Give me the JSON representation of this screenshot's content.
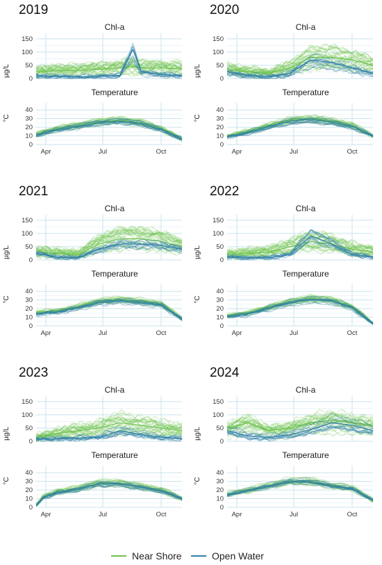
{
  "legend": {
    "items": [
      {
        "label": "Near Shore",
        "color": "#6cc24a"
      },
      {
        "label": "Open Water",
        "color": "#2f7ea8"
      }
    ]
  },
  "colors": {
    "near_shore": "#6cc24a",
    "open_water": "#2f7ea8",
    "grid": "#c8e3ec"
  },
  "chart_data": [
    {
      "year": "2019",
      "panels": [
        {
          "type": "line",
          "title": "Chl-a",
          "ylabel": "µg/L",
          "ylim": [
            0,
            160
          ],
          "yticks": [
            0,
            50,
            100,
            150
          ],
          "xticks": [
            "Apr",
            "Jul",
            "Oct"
          ],
          "xlim": [
            "Mar 31",
            "Oct 31"
          ],
          "series": [
            {
              "name": "Near Shore",
              "x": [
                "Apr 01",
                "May 01",
                "Jun 01",
                "Jul 01",
                "Aug 01",
                "Aug 20",
                "Sep 01",
                "Oct 01",
                "Oct 31"
              ],
              "values": [
                25,
                30,
                30,
                35,
                40,
                45,
                40,
                40,
                35
              ]
            },
            {
              "name": "Open Water",
              "x": [
                "Apr 01",
                "May 01",
                "Jun 01",
                "Jul 01",
                "Aug 01",
                "Aug 20",
                "Sep 01",
                "Oct 01",
                "Oct 31"
              ],
              "values": [
                10,
                8,
                6,
                8,
                12,
                110,
                25,
                15,
                10
              ]
            }
          ]
        },
        {
          "type": "line",
          "title": "Temperature",
          "ylabel": "°C",
          "ylim": [
            0,
            45
          ],
          "yticks": [
            0,
            10,
            20,
            30,
            40
          ],
          "xticks": [
            "Apr",
            "Jul",
            "Oct"
          ],
          "xlim": [
            "Mar 31",
            "Oct 31"
          ],
          "series": [
            {
              "name": "Near Shore",
              "x": [
                "Apr 01",
                "May 01",
                "Jun 01",
                "Jul 01",
                "Aug 01",
                "Sep 01",
                "Oct 01",
                "Oct 31"
              ],
              "values": [
                12,
                18,
                22,
                26,
                28,
                25,
                18,
                6
              ]
            },
            {
              "name": "Open Water",
              "x": [
                "Apr 01",
                "May 01",
                "Jun 01",
                "Jul 01",
                "Aug 01",
                "Sep 01",
                "Oct 01",
                "Oct 31"
              ],
              "values": [
                11,
                17,
                21,
                25,
                27,
                24,
                17,
                6
              ]
            }
          ]
        }
      ]
    },
    {
      "year": "2020",
      "panels": [
        {
          "type": "line",
          "title": "Chl-a",
          "ylabel": "µg/L",
          "ylim": [
            0,
            160
          ],
          "yticks": [
            0,
            50,
            100,
            150
          ],
          "xticks": [
            "Apr",
            "Jul",
            "Oct"
          ],
          "xlim": [
            "Mar 31",
            "Oct 31"
          ],
          "series": [
            {
              "name": "Near Shore",
              "x": [
                "Apr 01",
                "May 01",
                "Jun 01",
                "Jul 01",
                "Aug 01",
                "Sep 01",
                "Oct 01",
                "Oct 31"
              ],
              "values": [
                35,
                25,
                20,
                40,
                80,
                80,
                70,
                50
              ]
            },
            {
              "name": "Open Water",
              "x": [
                "Apr 01",
                "May 01",
                "Jun 01",
                "Jul 01",
                "Aug 01",
                "Sep 01",
                "Oct 01",
                "Oct 31"
              ],
              "values": [
                25,
                12,
                8,
                20,
                70,
                60,
                40,
                20
              ]
            }
          ]
        },
        {
          "type": "line",
          "title": "Temperature",
          "ylabel": "°C",
          "ylim": [
            0,
            45
          ],
          "yticks": [
            0,
            10,
            20,
            30,
            40
          ],
          "xticks": [
            "Apr",
            "Jul",
            "Oct"
          ],
          "xlim": [
            "Mar 31",
            "Oct 31"
          ],
          "series": [
            {
              "name": "Near Shore",
              "x": [
                "Apr 01",
                "May 01",
                "Jun 01",
                "Jul 01",
                "Aug 01",
                "Sep 01",
                "Oct 01",
                "Oct 31"
              ],
              "values": [
                10,
                15,
                22,
                28,
                30,
                27,
                22,
                10
              ]
            },
            {
              "name": "Open Water",
              "x": [
                "Apr 01",
                "May 01",
                "Jun 01",
                "Jul 01",
                "Aug 01",
                "Sep 01",
                "Oct 01",
                "Oct 31"
              ],
              "values": [
                9,
                14,
                21,
                27,
                29,
                26,
                21,
                10
              ]
            }
          ]
        }
      ]
    },
    {
      "year": "2021",
      "panels": [
        {
          "type": "line",
          "title": "Chl-a",
          "ylabel": "µg/L",
          "ylim": [
            0,
            160
          ],
          "yticks": [
            0,
            50,
            100,
            150
          ],
          "xticks": [
            "Apr",
            "Jul",
            "Oct"
          ],
          "xlim": [
            "Mar 31",
            "Oct 31"
          ],
          "series": [
            {
              "name": "Near Shore",
              "x": [
                "Apr 01",
                "May 01",
                "Jun 01",
                "Jul 01",
                "Aug 01",
                "Sep 01",
                "Oct 01",
                "Oct 31"
              ],
              "values": [
                30,
                25,
                20,
                60,
                80,
                80,
                70,
                50
              ]
            },
            {
              "name": "Open Water",
              "x": [
                "Apr 01",
                "May 01",
                "Jun 01",
                "Jul 01",
                "Aug 01",
                "Sep 01",
                "Oct 01",
                "Oct 31"
              ],
              "values": [
                25,
                10,
                8,
                40,
                60,
                60,
                55,
                40
              ]
            }
          ]
        },
        {
          "type": "line",
          "title": "Temperature",
          "ylabel": "°C",
          "ylim": [
            0,
            45
          ],
          "yticks": [
            0,
            10,
            20,
            30,
            40
          ],
          "xticks": [
            "Apr",
            "Jul",
            "Oct"
          ],
          "xlim": [
            "Mar 31",
            "Oct 31"
          ],
          "series": [
            {
              "name": "Near Shore",
              "x": [
                "Apr 01",
                "May 01",
                "Jun 01",
                "Jul 01",
                "Aug 01",
                "Sep 01",
                "Oct 01",
                "Oct 31"
              ],
              "values": [
                15,
                17,
                22,
                28,
                30,
                28,
                25,
                8
              ]
            },
            {
              "name": "Open Water",
              "x": [
                "Apr 01",
                "May 01",
                "Jun 01",
                "Jul 01",
                "Aug 01",
                "Sep 01",
                "Oct 01",
                "Oct 31"
              ],
              "values": [
                14,
                16,
                21,
                27,
                29,
                27,
                24,
                8
              ]
            }
          ]
        }
      ]
    },
    {
      "year": "2022",
      "panels": [
        {
          "type": "line",
          "title": "Chl-a",
          "ylabel": "µg/L",
          "ylim": [
            0,
            160
          ],
          "yticks": [
            0,
            50,
            100,
            150
          ],
          "xticks": [
            "Apr",
            "Jul",
            "Oct"
          ],
          "xlim": [
            "Mar 31",
            "Oct 31"
          ],
          "series": [
            {
              "name": "Near Shore",
              "x": [
                "Apr 01",
                "May 01",
                "Jun 01",
                "Jul 01",
                "Aug 01",
                "Sep 01",
                "Oct 01",
                "Oct 31"
              ],
              "values": [
                20,
                25,
                30,
                50,
                70,
                60,
                40,
                30
              ]
            },
            {
              "name": "Open Water",
              "x": [
                "Apr 01",
                "May 01",
                "Jun 01",
                "Jul 01",
                "Aug 01",
                "Sep 01",
                "Oct 01",
                "Oct 31"
              ],
              "values": [
                10,
                8,
                8,
                20,
                90,
                60,
                20,
                10
              ]
            }
          ]
        },
        {
          "type": "line",
          "title": "Temperature",
          "ylabel": "°C",
          "ylim": [
            0,
            45
          ],
          "yticks": [
            0,
            10,
            20,
            30,
            40
          ],
          "xticks": [
            "Apr",
            "Jul",
            "Oct"
          ],
          "xlim": [
            "Mar 31",
            "Oct 31"
          ],
          "series": [
            {
              "name": "Near Shore",
              "x": [
                "Apr 01",
                "May 01",
                "Jun 01",
                "Jul 01",
                "Aug 01",
                "Sep 01",
                "Oct 01",
                "Oct 31"
              ],
              "values": [
                12,
                15,
                22,
                28,
                32,
                30,
                22,
                3
              ]
            },
            {
              "name": "Open Water",
              "x": [
                "Apr 01",
                "May 01",
                "Jun 01",
                "Jul 01",
                "Aug 01",
                "Sep 01",
                "Oct 01",
                "Oct 31"
              ],
              "values": [
                11,
                14,
                21,
                27,
                31,
                29,
                21,
                3
              ]
            }
          ]
        }
      ]
    },
    {
      "year": "2023",
      "panels": [
        {
          "type": "line",
          "title": "Chl-a",
          "ylabel": "µg/L",
          "ylim": [
            0,
            160
          ],
          "yticks": [
            0,
            50,
            100,
            150
          ],
          "xticks": [
            "Apr",
            "Jul",
            "Oct"
          ],
          "xlim": [
            "Mar 31",
            "Oct 31"
          ],
          "series": [
            {
              "name": "Near Shore",
              "x": [
                "Apr 01",
                "May 01",
                "Jun 01",
                "Jul 01",
                "Aug 01",
                "Sep 01",
                "Oct 01",
                "Oct 31"
              ],
              "values": [
                15,
                30,
                40,
                50,
                70,
                60,
                50,
                40
              ]
            },
            {
              "name": "Open Water",
              "x": [
                "Apr 01",
                "May 01",
                "Jun 01",
                "Jul 01",
                "Aug 01",
                "Sep 01",
                "Oct 01",
                "Oct 31"
              ],
              "values": [
                8,
                10,
                12,
                15,
                40,
                25,
                15,
                10
              ]
            }
          ]
        },
        {
          "type": "line",
          "title": "Temperature",
          "ylabel": "°C",
          "ylim": [
            0,
            45
          ],
          "yticks": [
            0,
            10,
            20,
            30,
            40
          ],
          "xticks": [
            "Apr",
            "Jul",
            "Oct"
          ],
          "xlim": [
            "Mar 31",
            "Oct 31"
          ],
          "series": [
            {
              "name": "Near Shore",
              "x": [
                "Apr 01",
                "Apr 10",
                "May 01",
                "Jun 01",
                "Jul 01",
                "Aug 01",
                "Sep 01",
                "Oct 01",
                "Oct 31"
              ],
              "values": [
                3,
                12,
                18,
                22,
                28,
                28,
                24,
                20,
                10
              ]
            },
            {
              "name": "Open Water",
              "x": [
                "Apr 01",
                "Apr 10",
                "May 01",
                "Jun 01",
                "Jul 01",
                "Aug 01",
                "Sep 01",
                "Oct 01",
                "Oct 31"
              ],
              "values": [
                3,
                11,
                17,
                21,
                27,
                27,
                23,
                19,
                10
              ]
            }
          ]
        }
      ]
    },
    {
      "year": "2024",
      "panels": [
        {
          "type": "line",
          "title": "Chl-a",
          "ylabel": "µg/L",
          "ylim": [
            0,
            160
          ],
          "yticks": [
            0,
            50,
            100,
            150
          ],
          "xticks": [
            "Apr",
            "Jul",
            "Oct"
          ],
          "xlim": [
            "Mar 31",
            "Oct 31"
          ],
          "series": [
            {
              "name": "Near Shore",
              "x": [
                "Apr 01",
                "May 01",
                "Jun 01",
                "Jul 01",
                "Aug 01",
                "Sep 01",
                "Oct 01",
                "Oct 31"
              ],
              "values": [
                50,
                70,
                40,
                50,
                70,
                80,
                70,
                60
              ]
            },
            {
              "name": "Open Water",
              "x": [
                "Apr 01",
                "May 01",
                "Jun 01",
                "Jul 01",
                "Aug 01",
                "Sep 01",
                "Oct 01",
                "Oct 31"
              ],
              "values": [
                40,
                20,
                15,
                25,
                45,
                70,
                60,
                40
              ]
            }
          ]
        },
        {
          "type": "line",
          "title": "Temperature",
          "ylabel": "°C",
          "ylim": [
            0,
            45
          ],
          "yticks": [
            0,
            10,
            20,
            30,
            40
          ],
          "xticks": [
            "Apr",
            "Jul",
            "Oct"
          ],
          "xlim": [
            "Mar 31",
            "Oct 31"
          ],
          "series": [
            {
              "name": "Near Shore",
              "x": [
                "Apr 01",
                "May 01",
                "Jun 01",
                "Jul 01",
                "Aug 01",
                "Sep 01",
                "Oct 01",
                "Oct 31"
              ],
              "values": [
                15,
                20,
                25,
                30,
                30,
                25,
                22,
                8
              ]
            },
            {
              "name": "Open Water",
              "x": [
                "Apr 01",
                "May 01",
                "Jun 01",
                "Jul 01",
                "Aug 01",
                "Sep 01",
                "Oct 01",
                "Oct 31"
              ],
              "values": [
                14,
                19,
                24,
                29,
                29,
                24,
                21,
                8
              ]
            }
          ]
        }
      ]
    }
  ]
}
